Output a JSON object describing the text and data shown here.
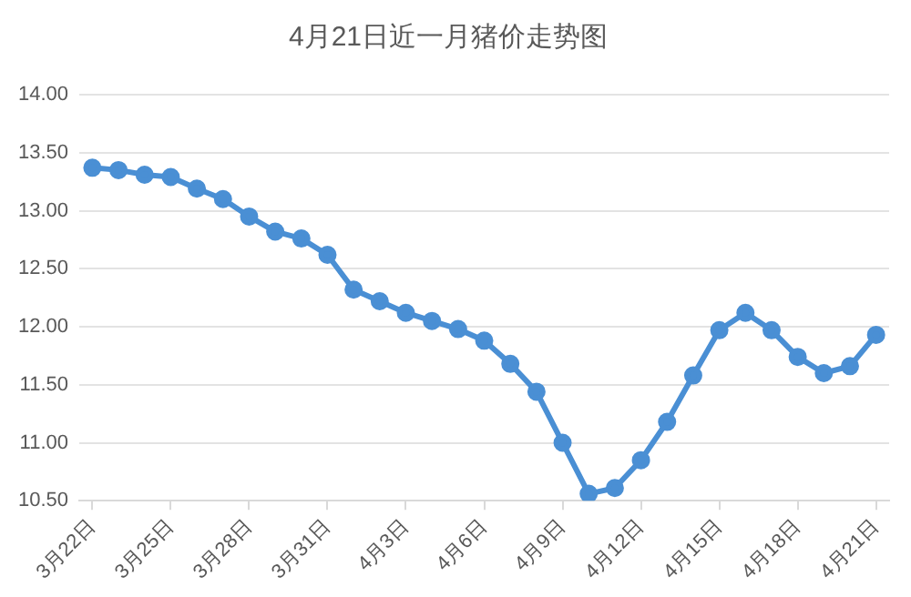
{
  "chart_data": {
    "type": "line",
    "title": "4月21日近一月猪价走势图",
    "categories": [
      "3月22日",
      null,
      null,
      "3月25日",
      null,
      null,
      "3月28日",
      null,
      null,
      "3月31日",
      null,
      null,
      "4月3日",
      null,
      null,
      "4月6日",
      null,
      null,
      "4月9日",
      null,
      null,
      "4月12日",
      null,
      null,
      "4月15日",
      null,
      null,
      "4月18日",
      null,
      null,
      "4月21日"
    ],
    "series": [
      {
        "color": "#4a8fd4",
        "values": [
          13.37,
          13.35,
          13.31,
          13.29,
          13.19,
          13.1,
          12.95,
          12.82,
          12.76,
          12.62,
          12.32,
          12.22,
          12.12,
          12.05,
          11.98,
          11.88,
          11.68,
          11.44,
          11.0,
          10.56,
          10.61,
          10.85,
          11.18,
          11.58,
          11.97,
          12.12,
          11.97,
          11.74,
          11.6,
          11.66,
          11.93
        ]
      }
    ],
    "ylim": [
      10.5,
      14.0
    ],
    "yticks": [
      {
        "value": 10.5,
        "label": "10.50"
      },
      {
        "value": 11.0,
        "label": "11.00"
      },
      {
        "value": 11.5,
        "label": "11.50"
      },
      {
        "value": 12.0,
        "label": "12.00"
      },
      {
        "value": 12.5,
        "label": "12.50"
      },
      {
        "value": 13.0,
        "label": "13.00"
      },
      {
        "value": 13.5,
        "label": "13.50"
      },
      {
        "value": 14.0,
        "label": "14.00"
      }
    ],
    "grid": "y",
    "legend": false,
    "marker": "circle",
    "line_style": "solid"
  }
}
